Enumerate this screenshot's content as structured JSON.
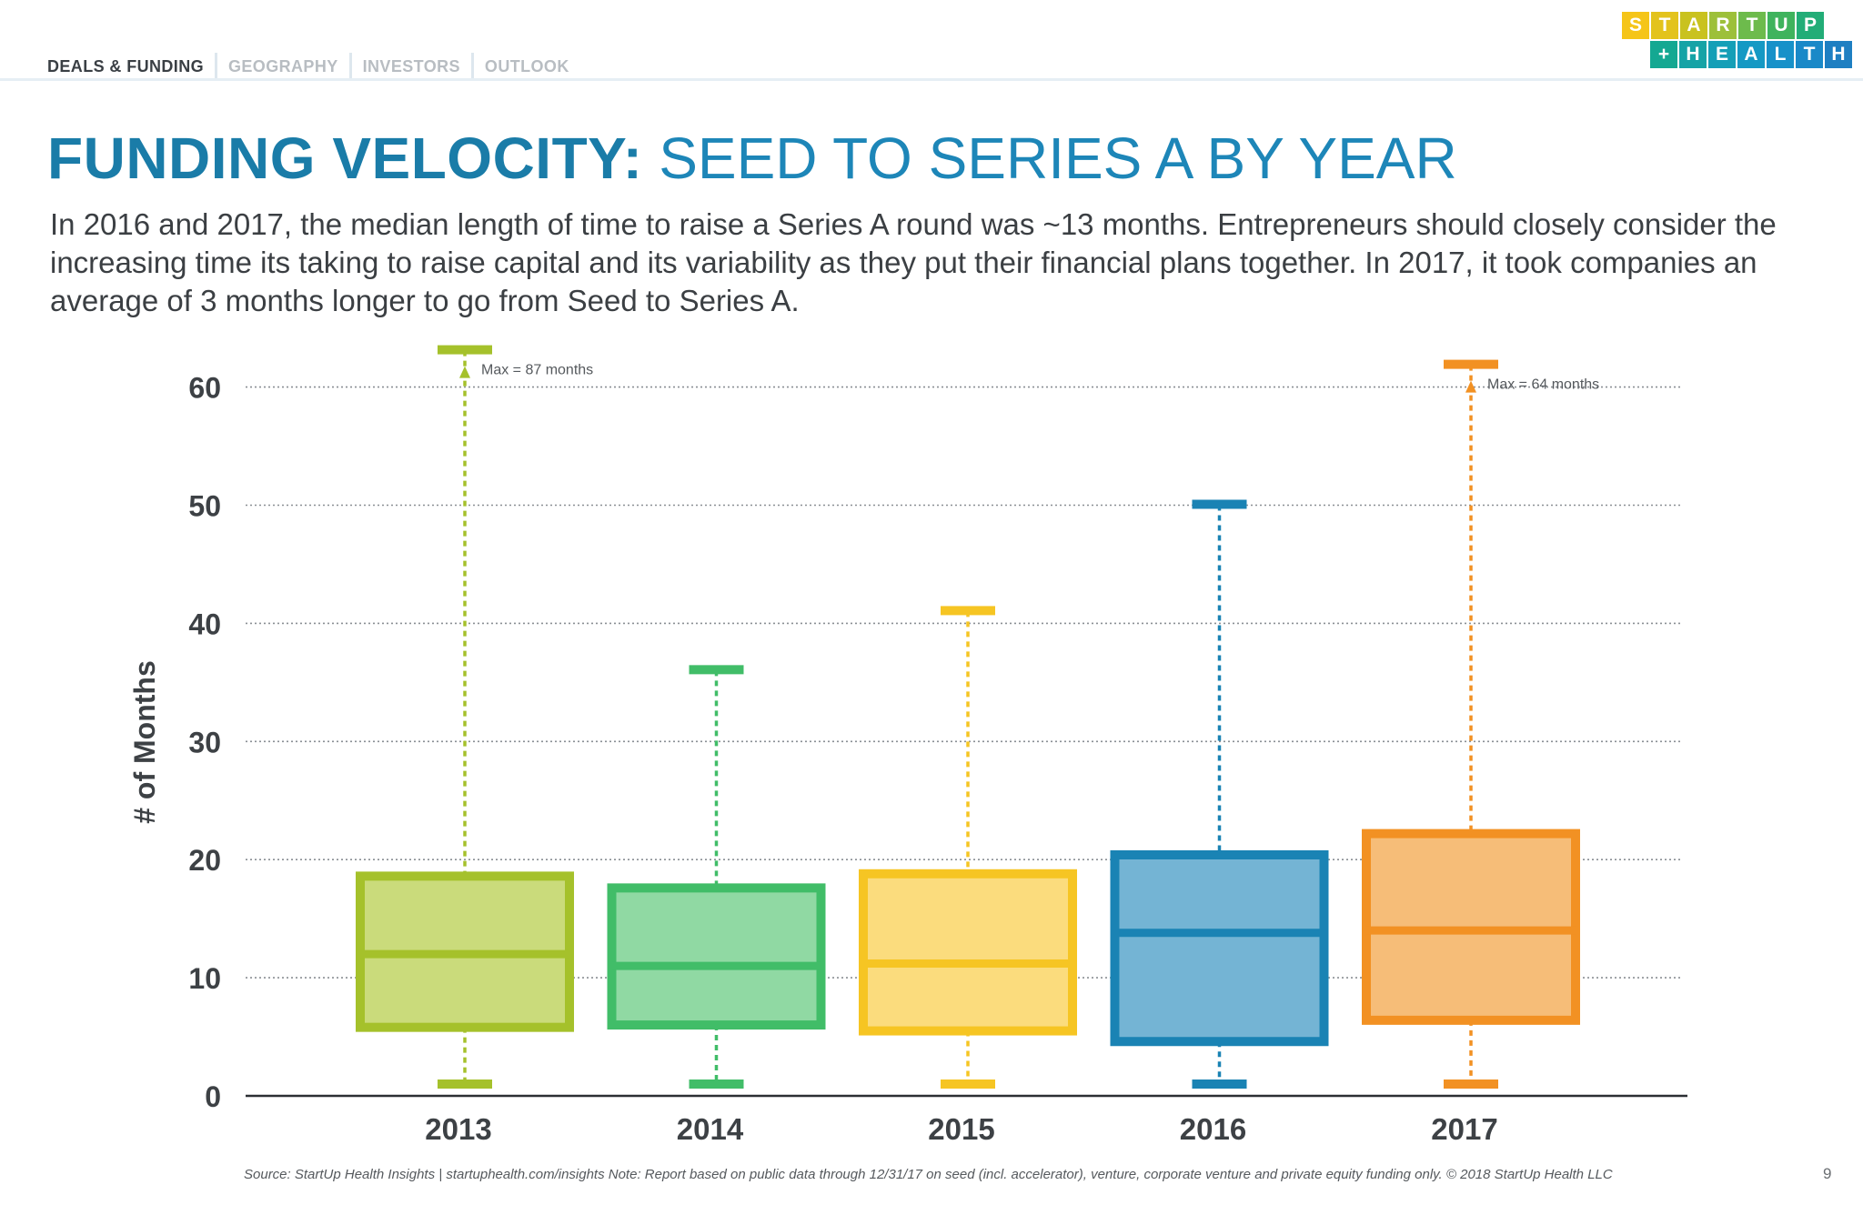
{
  "nav": {
    "tabs": [
      {
        "label": "DEALS & FUNDING",
        "active": true
      },
      {
        "label": "GEOGRAPHY",
        "active": false
      },
      {
        "label": "INVESTORS",
        "active": false
      },
      {
        "label": "OUTLOOK",
        "active": false
      }
    ]
  },
  "logo": {
    "row1": [
      {
        "ch": "S",
        "color": "#f5c518"
      },
      {
        "ch": "T",
        "color": "#e3c31c"
      },
      {
        "ch": "A",
        "color": "#c9c21f"
      },
      {
        "ch": "R",
        "color": "#9dc03a"
      },
      {
        "ch": "T",
        "color": "#6dbb4c"
      },
      {
        "ch": "U",
        "color": "#3fb35d"
      },
      {
        "ch": "P",
        "color": "#22ad77"
      }
    ],
    "row2": [
      {
        "ch": "+",
        "color": "#14a892"
      },
      {
        "ch": "H",
        "color": "#15a3a6"
      },
      {
        "ch": "E",
        "color": "#149fb7"
      },
      {
        "ch": "A",
        "color": "#1599c4"
      },
      {
        "ch": "L",
        "color": "#1791c9"
      },
      {
        "ch": "T",
        "color": "#1a89c8"
      },
      {
        "ch": "H",
        "color": "#1e7fc2"
      }
    ]
  },
  "title": {
    "strong": "FUNDING VELOCITY:",
    "light": " SEED TO SERIES A BY YEAR"
  },
  "description": "In 2016 and 2017, the median length of time to raise a Series A round was ~13 months. Entrepreneurs should closely consider the increasing time its taking to raise capital and its variability as they put their financial plans together. In 2017, it took companies an average of 3 months longer to go from Seed to Series A.",
  "chart_data": {
    "type": "box",
    "ylabel": "# of Months",
    "xlabel": "",
    "ylim": [
      0,
      60
    ],
    "yticks": [
      0,
      10,
      20,
      30,
      40,
      50,
      60
    ],
    "grid": true,
    "categories": [
      "2013",
      "2014",
      "2015",
      "2016",
      "2017"
    ],
    "series": [
      {
        "category": "2013",
        "min": 1,
        "q1": 5.8,
        "median": 12,
        "q3": 18.6,
        "max": 87,
        "max_label": "Max = 87 months",
        "capped": true,
        "color": "#a5c12b",
        "fill": "#cadb7b"
      },
      {
        "category": "2014",
        "min": 1,
        "q1": 6,
        "median": 11,
        "q3": 17.6,
        "max": 36,
        "max_label": "",
        "capped": false,
        "color": "#41bd68",
        "fill": "#90d9a3"
      },
      {
        "category": "2015",
        "min": 1,
        "q1": 5.5,
        "median": 11.2,
        "q3": 18.8,
        "max": 41,
        "max_label": "",
        "capped": false,
        "color": "#f6c523",
        "fill": "#fbdc7d"
      },
      {
        "category": "2016",
        "min": 1,
        "q1": 4.6,
        "median": 13.8,
        "q3": 20.4,
        "max": 50,
        "max_label": "",
        "capped": false,
        "color": "#1a83b4",
        "fill": "#74b4d4"
      },
      {
        "category": "2017",
        "min": 1,
        "q1": 6.4,
        "median": 14,
        "q3": 22.2,
        "max": 64,
        "max_label": "Max = 64 months",
        "capped": true,
        "color": "#f29123",
        "fill": "#f6bd78"
      }
    ]
  },
  "footer": {
    "source": "Source: StartUp Health Insights | startuphealth.com/insights Note: Report based on public data through 12/31/17 on seed (incl. accelerator), venture, corporate venture and private equity funding only. © 2018 StartUp Health LLC",
    "page": "9"
  }
}
